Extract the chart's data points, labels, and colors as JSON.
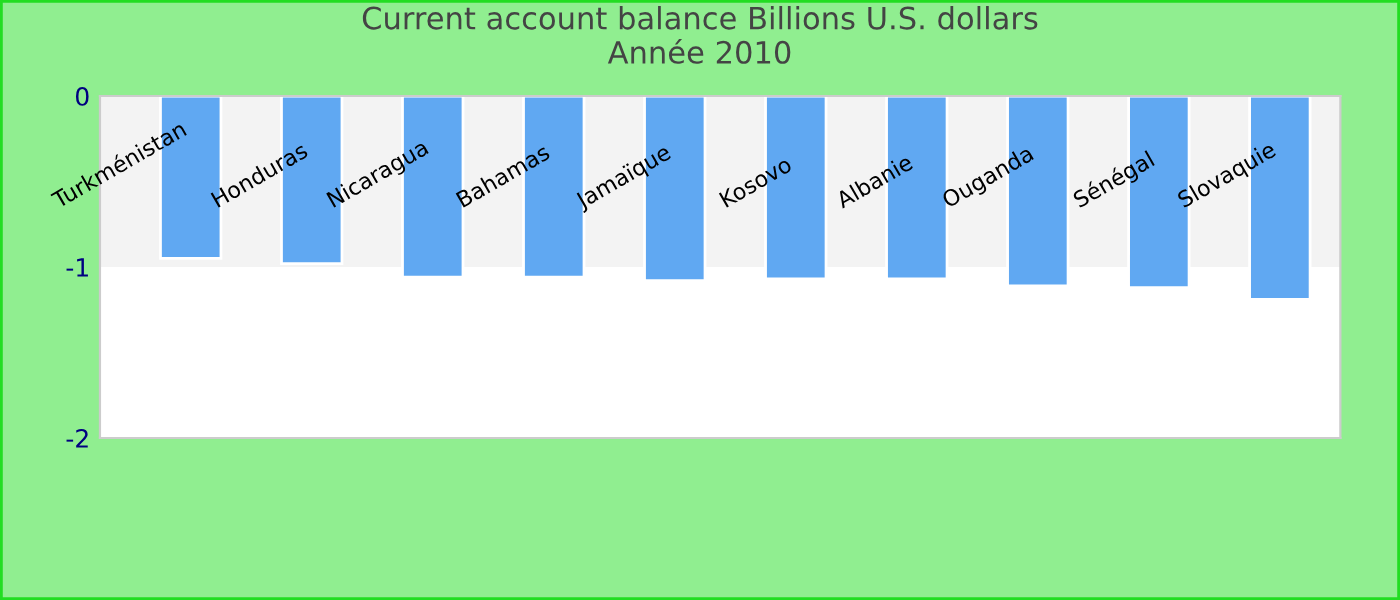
{
  "chart_data": {
    "type": "bar",
    "title": "Current account balance Billions U.S. dollars\nAnnée 2010",
    "categories": [
      "Turkménistan",
      "Honduras",
      "Nicaragua",
      "Bahamas",
      "Jamaïque",
      "Kosovo",
      "Albanie",
      "Ouganda",
      "Sénégal",
      "Slovaquie"
    ],
    "values": [
      -0.95,
      -0.98,
      -1.06,
      -1.06,
      -1.08,
      -1.07,
      -1.07,
      -1.11,
      -1.12,
      -1.19
    ],
    "color": "#60a8f2",
    "ylim": [
      -2,
      0
    ],
    "yticks": [
      -2,
      -1,
      0
    ],
    "bands": [
      {
        "axis": "y",
        "from": -1,
        "to": 0,
        "color": "#f3f3f3"
      }
    ],
    "grid": false,
    "legend": false
  }
}
